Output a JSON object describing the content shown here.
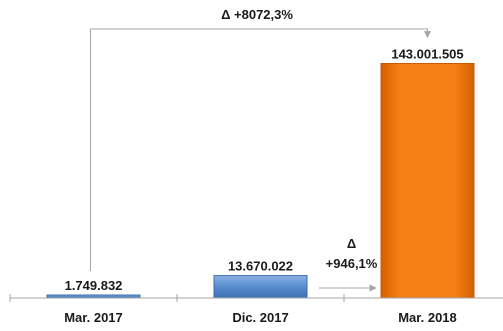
{
  "chart_data": {
    "type": "bar",
    "categories": [
      "Mar. 2017",
      "Dic. 2017",
      "Mar. 2018"
    ],
    "values": [
      1749832,
      13670022,
      143001505
    ],
    "value_labels": [
      "1.749.832",
      "13.670.022",
      "143.001.505"
    ],
    "bar_colors": [
      "#5B8FD0",
      "#5B8FD0",
      "#F07A10"
    ],
    "ylim": [
      0,
      150000000
    ],
    "grid": false,
    "legend": "none",
    "annotations": [
      {
        "text": "Δ +8072,3%",
        "from": "Mar. 2017",
        "to": "Mar. 2018"
      },
      {
        "text_lines": [
          "Δ",
          "+946,1%"
        ],
        "from": "Dic. 2017",
        "to": "Mar. 2018"
      }
    ]
  }
}
